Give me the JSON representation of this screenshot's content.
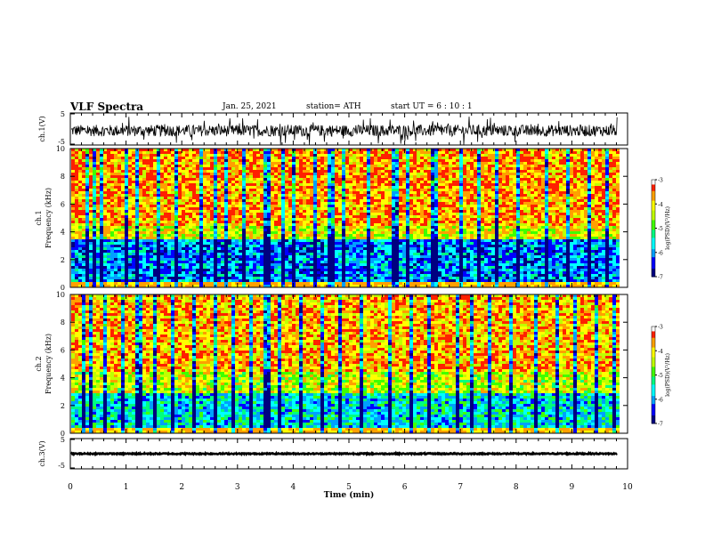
{
  "header": {
    "title": "VLF Spectra",
    "date": "Jan. 25, 2021",
    "station": "station= ATH",
    "start_time": "start UT =  6 : 10 : 1"
  },
  "axes": {
    "x_label": "Time (min)",
    "x_ticks": [
      "0",
      "1",
      "2",
      "3",
      "4",
      "5",
      "6",
      "7",
      "8",
      "9",
      "10"
    ],
    "ch1_v_label": "ch.1(V)",
    "ch3_v_label": "ch.3(V)",
    "v_ticks": [
      "5",
      "-5"
    ],
    "freq_ticks": [
      "0",
      "2",
      "4",
      "6",
      "8",
      "10"
    ],
    "spec1_label_line1": "ch.1",
    "spec2_label_line1": "ch.2",
    "freq_label": "Frequency (kHz)"
  },
  "colorbar": {
    "label": "log(PSD)(V²/Hz)",
    "ticks": [
      "-3",
      "-4",
      "-5",
      "-6",
      "-7"
    ],
    "colors": [
      "#000000",
      "#000080",
      "#0000ff",
      "#00a0ff",
      "#00ffff",
      "#00ff80",
      "#40ff00",
      "#c0ff00",
      "#ffff00",
      "#ffa000",
      "#ff2000",
      "#ffffff"
    ]
  },
  "chart_data": [
    {
      "type": "line",
      "title": "ch.1(V)",
      "xlabel": "Time (min)",
      "ylabel": "ch.1(V)",
      "xlim": [
        0,
        10
      ],
      "ylim": [
        -5,
        5
      ],
      "data_end_min": 9.82,
      "description_values": {
        "baseline_v": -0.5,
        "amplitude_v": 4.5
      }
    },
    {
      "type": "heatmap",
      "title": "ch.1",
      "xlabel": "Time (min)",
      "ylabel": "Frequency (kHz)",
      "xlim": [
        0,
        10
      ],
      "ylim": [
        0,
        10
      ],
      "zlim": [
        -7,
        -3
      ],
      "z_label": "log(PSD)(V²/Hz)",
      "data_end_min": 9.82,
      "low_band_khz": [
        0.5,
        3.5
      ],
      "low_band_log_psd": -6,
      "upper_log_psd": -3.6,
      "spike_times_min": [
        0.25,
        0.4,
        0.55,
        0.95,
        1.15,
        1.55,
        1.85,
        2.3,
        2.55,
        2.75,
        3.1,
        3.5,
        3.8,
        3.95,
        4.35,
        4.65,
        4.9,
        5.3,
        5.8,
        6.05,
        6.5,
        7.0,
        7.3,
        7.6,
        8.0,
        8.5,
        8.9,
        9.3,
        9.6
      ]
    },
    {
      "type": "heatmap",
      "title": "ch.2",
      "xlabel": "Time (min)",
      "ylabel": "Frequency (kHz)",
      "xlim": [
        0,
        10
      ],
      "ylim": [
        0,
        10
      ],
      "zlim": [
        -7,
        -3
      ],
      "z_label": "log(PSD)(V²/Hz)",
      "data_end_min": 9.82,
      "low_band_khz": [
        0.3,
        3.0
      ],
      "low_band_log_psd": -5.6,
      "upper_log_psd": -3.7,
      "spike_times_min": [
        0.2,
        0.35,
        0.6,
        0.9,
        1.2,
        1.5,
        1.8,
        2.2,
        2.6,
        2.9,
        3.2,
        3.5,
        3.75,
        4.1,
        4.5,
        4.8,
        5.2,
        5.7,
        6.1,
        6.4,
        6.9,
        7.2,
        7.5,
        7.9,
        8.3,
        8.7,
        9.0,
        9.4,
        9.7
      ]
    },
    {
      "type": "line",
      "title": "ch.3(V)",
      "xlabel": "Time (min)",
      "ylabel": "ch.3(V)",
      "xlim": [
        0,
        10
      ],
      "ylim": [
        -5,
        5
      ],
      "data_end_min": 9.82,
      "description_values": {
        "baseline_v": 0,
        "amplitude_v": 0.4
      }
    }
  ]
}
